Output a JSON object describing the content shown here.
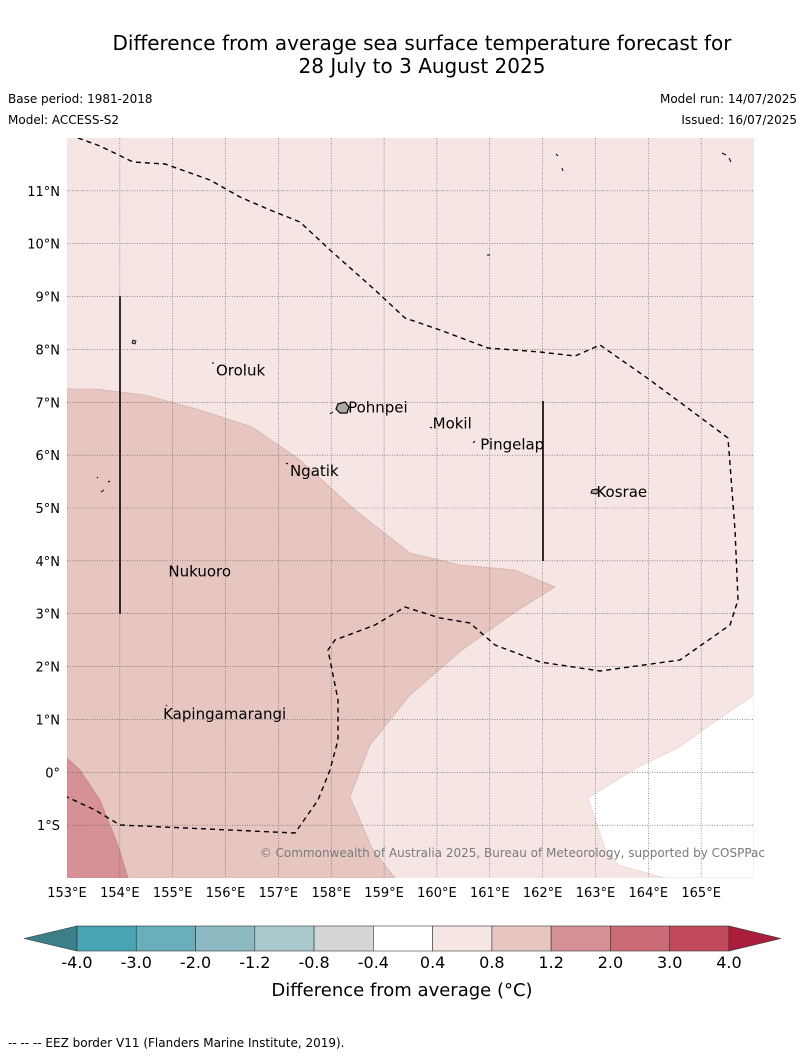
{
  "title": {
    "line1": "Difference from average sea surface temperature forecast for",
    "line2": "28 July to 3 August 2025"
  },
  "meta": {
    "base_period": "Base period: 1981-2018",
    "model": "Model: ACCESS-S2",
    "model_run": "Model run: 14/07/2025",
    "issued": "Issued: 16/07/2025"
  },
  "map": {
    "lon_range": [
      153,
      166
    ],
    "lat_range": [
      -2,
      12
    ],
    "lon_ticks": [
      "153°E",
      "154°E",
      "155°E",
      "156°E",
      "157°E",
      "158°E",
      "159°E",
      "160°E",
      "161°E",
      "162°E",
      "163°E",
      "164°E",
      "165°E"
    ],
    "lat_ticks": [
      "11°N",
      "10°N",
      "9°N",
      "8°N",
      "7°N",
      "6°N",
      "5°N",
      "4°N",
      "3°N",
      "2°N",
      "1°N",
      "0°",
      "1°S"
    ],
    "grid": true,
    "places": [
      {
        "name": "Oroluk",
        "lon": 155.8,
        "lat": 7.6
      },
      {
        "name": "Pohnpei",
        "lon": 158.3,
        "lat": 6.9
      },
      {
        "name": "Mokil",
        "lon": 159.9,
        "lat": 6.6
      },
      {
        "name": "Pingelap",
        "lon": 160.8,
        "lat": 6.2
      },
      {
        "name": "Ngatik",
        "lon": 157.2,
        "lat": 5.7
      },
      {
        "name": "Kosrae",
        "lon": 163.0,
        "lat": 5.3
      },
      {
        "name": "Nukuoro",
        "lon": 154.9,
        "lat": 3.8
      },
      {
        "name": "Kapingamarangi",
        "lon": 154.8,
        "lat": 1.1
      }
    ],
    "copyright": "© Commonwealth of Australia 2025, Bureau of Meteorology, supported by COSPPac"
  },
  "colorbar": {
    "ticks": [
      "-4.0",
      "-3.0",
      "-2.0",
      "-1.2",
      "-0.8",
      "-0.4",
      "0.4",
      "0.8",
      "1.2",
      "2.0",
      "3.0",
      "4.0"
    ],
    "colors": [
      "#3c7f89",
      "#48a3b3",
      "#68aebd",
      "#8db9c3",
      "#aac9cc",
      "#d4d7d6",
      "#ffffff",
      "#f5e6e4",
      "#e7c6c1",
      "#d69196",
      "#cb6b76",
      "#c04a5a",
      "#ab1e3b"
    ],
    "label": "Difference from average (°C)"
  },
  "footer": "-- -- -- EEZ border V11 (Flanders Marine Institute, 2019)."
}
